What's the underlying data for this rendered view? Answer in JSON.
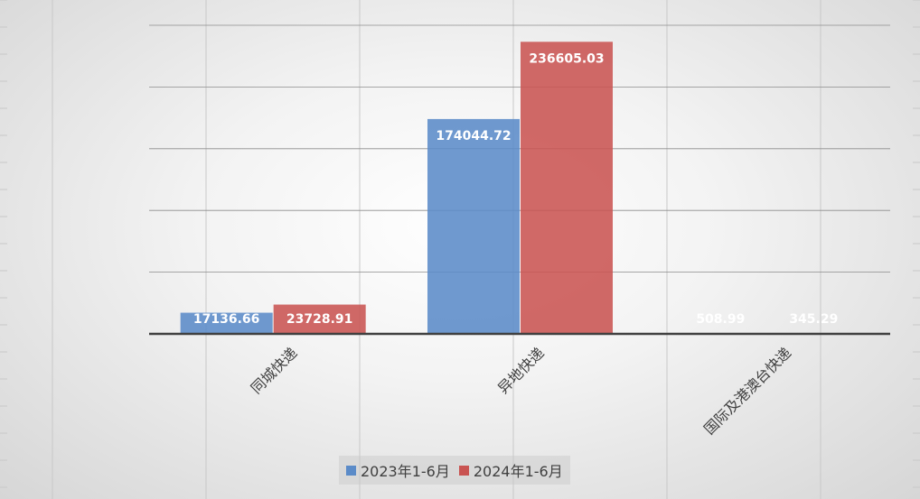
{
  "chart_data": {
    "type": "bar",
    "categories": [
      "同城快递",
      "异地快递",
      "国际及港澳台快递"
    ],
    "series": [
      {
        "name": "2023年1-6月",
        "values": [
          17136.66,
          174044.72,
          508.99
        ],
        "labels": [
          "17136.66",
          "174044.72",
          "508.99"
        ],
        "color": "#5b8bc8"
      },
      {
        "name": "2024年1-6月",
        "values": [
          23728.91,
          236605.03,
          345.29
        ],
        "labels": [
          "23728.91",
          "236605.03",
          "345.29"
        ],
        "color": "#c95452"
      }
    ],
    "ylim": [
      0,
      250000
    ],
    "grid": true,
    "legend": "bottom",
    "title": "",
    "xlabel": "",
    "ylabel": ""
  }
}
